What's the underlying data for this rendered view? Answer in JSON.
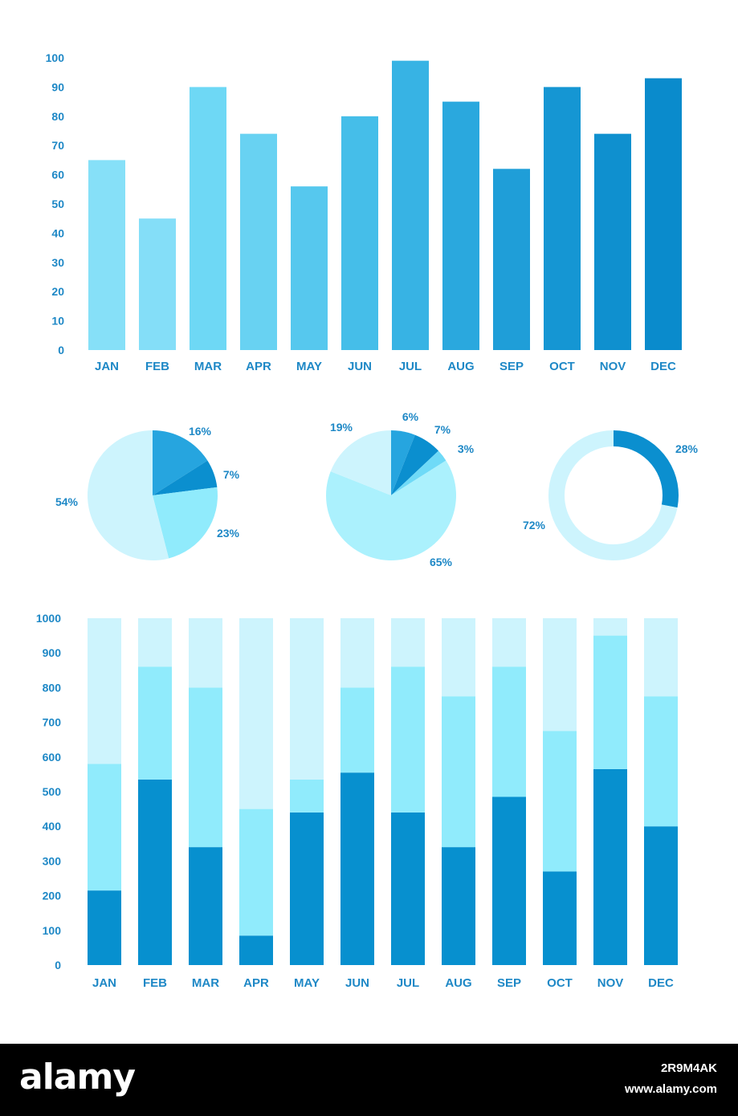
{
  "chart_data": [
    {
      "type": "bar",
      "categories": [
        "JAN",
        "FEB",
        "MAR",
        "APR",
        "MAY",
        "JUN",
        "JUL",
        "AUG",
        "SEP",
        "OCT",
        "NOV",
        "DEC"
      ],
      "values": [
        65,
        45,
        90,
        74,
        56,
        80,
        99,
        85,
        62,
        90,
        74,
        93
      ],
      "yticks": [
        "0",
        "10",
        "20",
        "30",
        "40",
        "50",
        "60",
        "70",
        "80",
        "90",
        "100"
      ],
      "ylim": [
        0,
        100
      ],
      "grid": false,
      "bar_colors": [
        "#86e0f8",
        "#84def8",
        "#6ed8f5",
        "#68d2f2",
        "#56c8ee",
        "#45bee9",
        "#37b3e4",
        "#2aa8de",
        "#1f9ed8",
        "#1596d3",
        "#0f90cf",
        "#0a8bcc"
      ]
    },
    {
      "type": "pie",
      "labels": [
        "16%",
        "7%",
        "23%",
        "54%"
      ],
      "values": [
        16,
        7,
        23,
        54
      ],
      "colors": [
        "#26a5df",
        "#0b8fcf",
        "#90ebfc",
        "#cdf4fd"
      ]
    },
    {
      "type": "pie",
      "labels": [
        "6%",
        "7%",
        "3%",
        "65%",
        "19%"
      ],
      "values": [
        6,
        7,
        3,
        65,
        19
      ],
      "colors": [
        "#26a5df",
        "#0b8fcf",
        "#6fdaf7",
        "#abf1fd",
        "#cdf4fd"
      ]
    },
    {
      "type": "pie",
      "donut": true,
      "labels": [
        "28%",
        "72%"
      ],
      "values": [
        28,
        72
      ],
      "colors": [
        "#0b8fcf",
        "#cdf4fd"
      ]
    },
    {
      "type": "bar",
      "stacked": true,
      "categories": [
        "JAN",
        "FEB",
        "MAR",
        "APR",
        "MAY",
        "JUN",
        "JUL",
        "AUG",
        "SEP",
        "OCT",
        "NOV",
        "DEC"
      ],
      "series": [
        {
          "values": [
            215,
            535,
            340,
            85,
            440,
            555,
            440,
            340,
            485,
            270,
            565,
            400
          ]
        },
        {
          "values": [
            365,
            325,
            460,
            365,
            95,
            245,
            420,
            435,
            375,
            405,
            385,
            375
          ]
        },
        {
          "values": [
            420,
            140,
            200,
            550,
            465,
            200,
            140,
            225,
            140,
            325,
            50,
            225
          ]
        }
      ],
      "series_colors": [
        "#0790cf",
        "#90ebfc",
        "#cdf4fd"
      ],
      "yticks": [
        "0",
        "100",
        "200",
        "300",
        "400",
        "500",
        "600",
        "700",
        "800",
        "900",
        "1000"
      ],
      "ylim": [
        0,
        1000
      ],
      "grid": false
    }
  ],
  "footer": {
    "brand": "alamy",
    "image_id": "2R9M4AK",
    "site": "www.alamy.com"
  },
  "colors": {
    "label": "#1e88c6",
    "footer_bg": "#000000"
  }
}
